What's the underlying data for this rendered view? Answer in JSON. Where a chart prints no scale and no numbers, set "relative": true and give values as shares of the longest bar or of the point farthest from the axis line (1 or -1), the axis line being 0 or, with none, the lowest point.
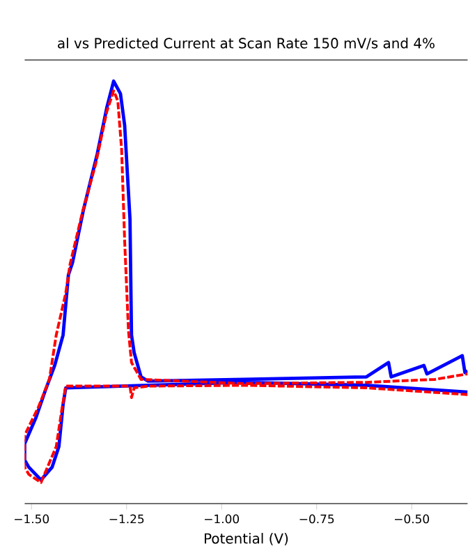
{
  "chart_data": {
    "type": "line",
    "title": "al vs Predicted Current at Scan Rate 150 mV/s and 4%",
    "xlabel": "Potential (V)",
    "relative": true,
    "xlim": [
      -1.518,
      -0.353
    ],
    "xticks": [
      {
        "value": -1.5,
        "label": "−1.50"
      },
      {
        "value": -1.25,
        "label": "−1.25"
      },
      {
        "value": -1.0,
        "label": "−1.00"
      },
      {
        "value": -0.75,
        "label": "−0.75"
      },
      {
        "value": -0.5,
        "label": "−0.50"
      }
    ],
    "series": [
      {
        "color": "#0000ff",
        "line_style": "solid",
        "x": [
          -0.353,
          -0.619,
          -0.942,
          -1.194,
          -1.41,
          -1.417,
          -1.428,
          -1.446,
          -1.475,
          -1.507,
          -1.518,
          -1.518,
          -1.489,
          -1.464,
          -1.439,
          -1.417,
          -1.403,
          -1.392,
          -1.363,
          -1.327,
          -1.302,
          -1.284,
          -1.266,
          -1.255,
          -1.241,
          -1.237,
          -1.23,
          -1.212,
          -1.194,
          -0.942,
          -0.619,
          -0.561,
          -0.554,
          -0.468,
          -0.46,
          -0.367,
          -0.36,
          -0.353
        ],
        "values": [
          0.264,
          0.28,
          0.287,
          0.28,
          0.274,
          0.234,
          0.135,
          0.086,
          0.056,
          0.086,
          0.103,
          0.142,
          0.202,
          0.267,
          0.327,
          0.399,
          0.541,
          0.571,
          0.697,
          0.828,
          0.937,
          1.0,
          0.97,
          0.895,
          0.673,
          0.399,
          0.357,
          0.3,
          0.29,
          0.294,
          0.3,
          0.334,
          0.3,
          0.327,
          0.307,
          0.35,
          0.31,
          0.314
        ]
      },
      {
        "color": "#ff0000",
        "line_style": "dashed",
        "x": [
          -0.353,
          -0.619,
          -0.942,
          -1.194,
          -1.23,
          -1.237,
          -1.241,
          -1.41,
          -1.421,
          -1.435,
          -1.475,
          -1.507,
          -1.518,
          -1.518,
          -1.482,
          -1.453,
          -1.435,
          -1.41,
          -1.399,
          -1.367,
          -1.331,
          -1.302,
          -1.284,
          -1.273,
          -1.263,
          -1.255,
          -1.245,
          -1.237,
          -1.212,
          -0.942,
          -0.619,
          -0.439,
          -0.353
        ],
        "values": [
          0.258,
          0.274,
          0.28,
          0.278,
          0.274,
          0.251,
          0.278,
          0.278,
          0.218,
          0.135,
          0.05,
          0.069,
          0.086,
          0.162,
          0.228,
          0.294,
          0.399,
          0.498,
          0.565,
          0.686,
          0.805,
          0.928,
          0.977,
          0.953,
          0.838,
          0.621,
          0.409,
          0.334,
          0.294,
          0.284,
          0.287,
          0.294,
          0.307
        ]
      }
    ]
  }
}
